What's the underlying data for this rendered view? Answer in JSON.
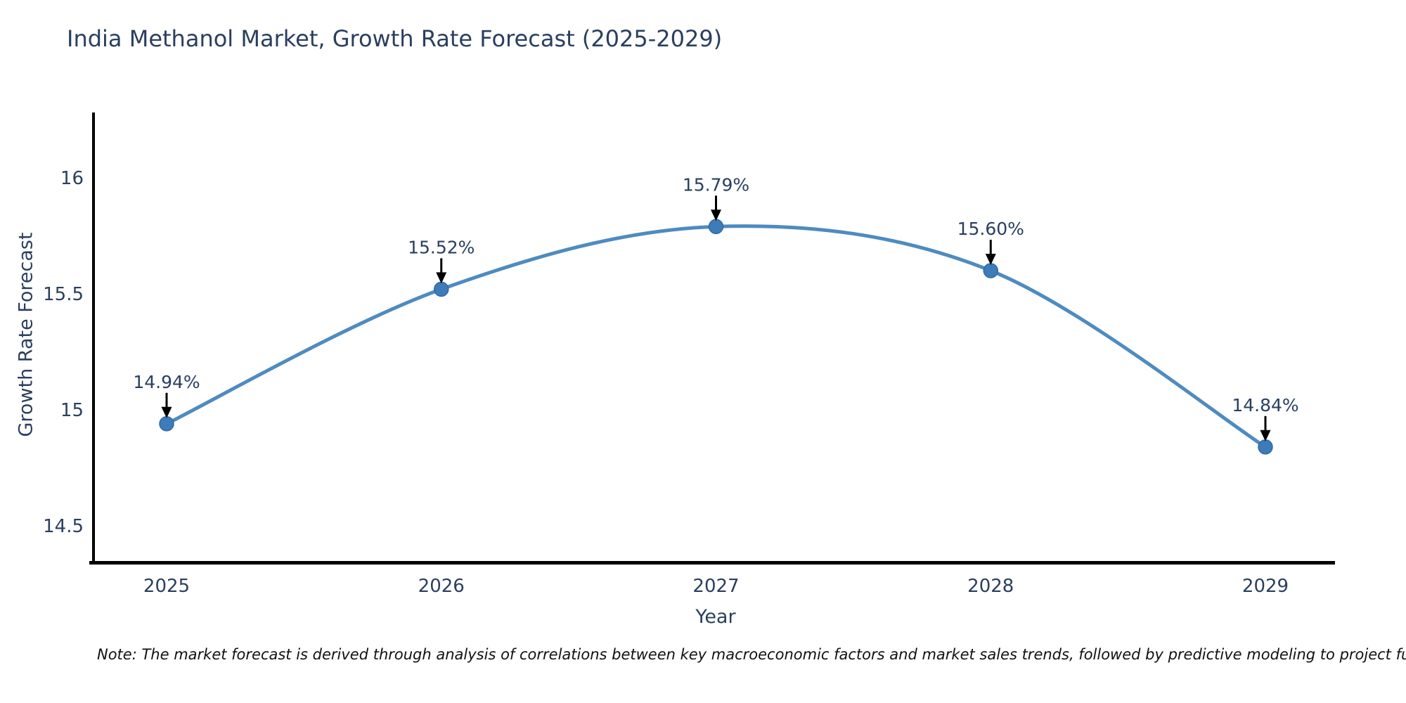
{
  "title": "India Methanol Market, Growth Rate Forecast (2025-2029)",
  "note": "Note: The market forecast is derived through analysis of correlations between key macroeconomic factors and market sales trends, followed by predictive modeling to project future sales",
  "colors": {
    "line": "#4e8bc0",
    "marker_fill": "#3d7cb8",
    "marker_stroke": "#2f6aa3",
    "text": "#2a3f5f",
    "axis": "#000000",
    "arrow": "#000000",
    "note_text": "#111111",
    "background": "#ffffff"
  },
  "chart_data": {
    "type": "line",
    "title": "India Methanol Market, Growth Rate Forecast (2025-2029)",
    "xlabel": "Year",
    "ylabel": "Growth Rate Forecast",
    "x": [
      2025,
      2026,
      2027,
      2028,
      2029
    ],
    "values": [
      14.94,
      15.52,
      15.79,
      15.6,
      14.84
    ],
    "point_labels": [
      "14.94%",
      "15.52%",
      "15.79%",
      "15.60%",
      "14.84%"
    ],
    "x_tick_labels": [
      "2025",
      "2026",
      "2027",
      "2028",
      "2029"
    ],
    "y_tick_values": [
      16,
      15.5,
      15,
      14.5
    ],
    "y_tick_labels": [
      "16",
      "15.5",
      "15",
      "14.5"
    ],
    "ylim": [
      14.33,
      16.28
    ],
    "grid": false,
    "legend": false,
    "line_shape": "spline",
    "markers": true,
    "annotations_have_arrows": true
  }
}
